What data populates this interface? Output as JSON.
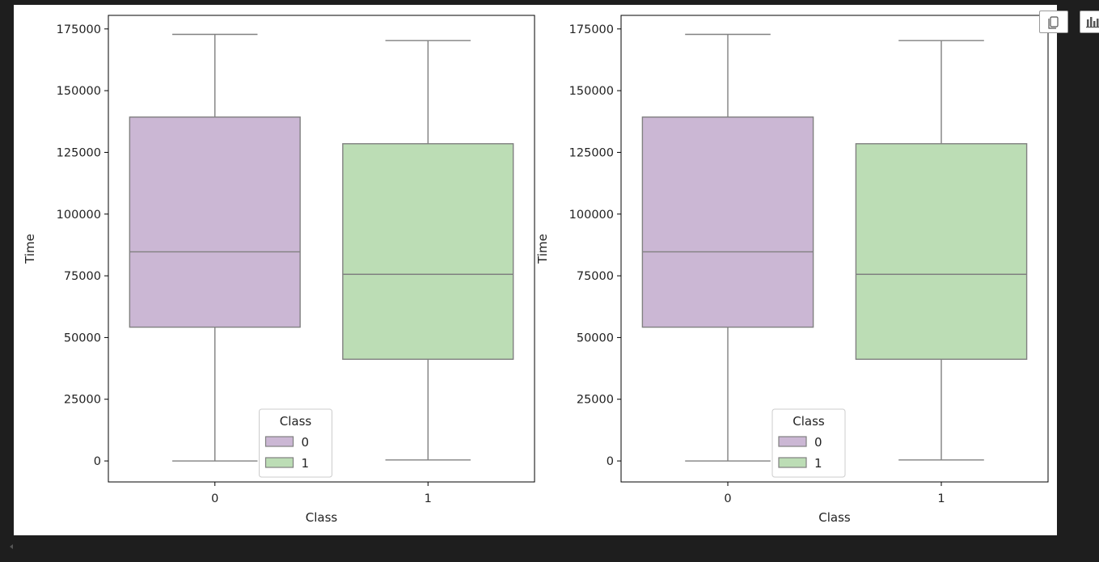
{
  "chart_data": [
    {
      "type": "box",
      "xlabel": "Class",
      "ylabel": "Time",
      "categories": [
        "0",
        "1"
      ],
      "ylim": [
        -8500,
        180500
      ],
      "yticks": [
        0,
        25000,
        50000,
        75000,
        100000,
        125000,
        150000,
        175000
      ],
      "boxes": [
        {
          "category": "0",
          "min": 0,
          "q1": 54200,
          "median": 84700,
          "q3": 139300,
          "max": 172800
        },
        {
          "category": "1",
          "min": 400,
          "q1": 41200,
          "median": 75600,
          "q3": 128500,
          "max": 170300
        }
      ],
      "legend": {
        "title": "Class",
        "entries": [
          "0",
          "1"
        ],
        "location": "lower center"
      },
      "grid": false
    },
    {
      "type": "box",
      "xlabel": "Class",
      "ylabel": "Time",
      "categories": [
        "0",
        "1"
      ],
      "ylim": [
        -8500,
        180500
      ],
      "yticks": [
        0,
        25000,
        50000,
        75000,
        100000,
        125000,
        150000,
        175000
      ],
      "boxes": [
        {
          "category": "0",
          "min": 0,
          "q1": 54200,
          "median": 84700,
          "q3": 139300,
          "max": 172800
        },
        {
          "category": "1",
          "min": 400,
          "q1": 41200,
          "median": 75600,
          "q3": 128500,
          "max": 170300
        }
      ],
      "legend": {
        "title": "Class",
        "entries": [
          "0",
          "1"
        ],
        "location": "lower center"
      },
      "grid": false
    }
  ],
  "colors": {
    "class_0": "#cbb7d4",
    "class_1": "#bcddb5",
    "box_edge": "#808080",
    "figure_bg": "#ffffff",
    "page_bg": "#1e1e1e"
  },
  "toolbar": {
    "copy_icon": "copy-icon",
    "chart_icon": "bar-chart-icon"
  }
}
